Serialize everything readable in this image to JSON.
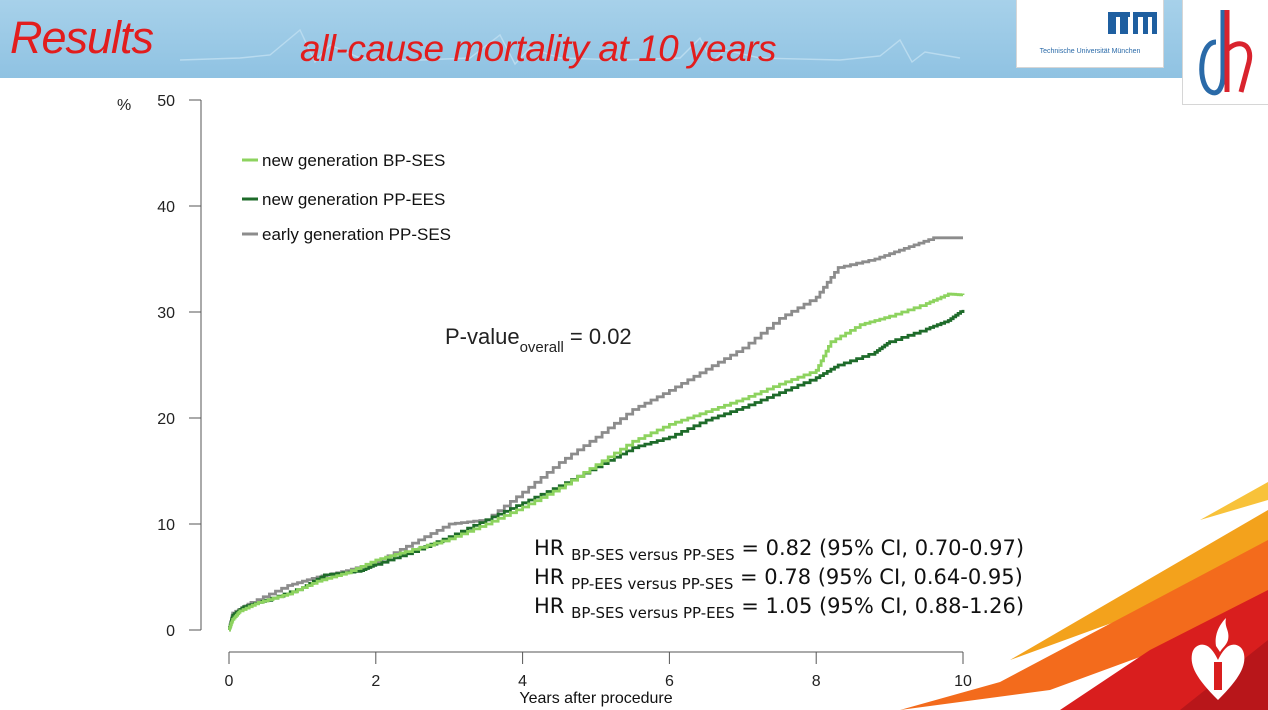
{
  "header": {
    "title": "Results",
    "subtitle": "all-cause mortality at 10 years",
    "tum_name": "Technische Universität München"
  },
  "colors": {
    "title_red": "#e21d1d",
    "header_blue": "#9ac9e6",
    "bp_ses": "#8dd35f",
    "pp_ees": "#1e6b2a",
    "early_pp_ses": "#8c8c8c",
    "stripe_orange": "#f36b1c",
    "stripe_red": "#d91e1e",
    "stripe_yellow": "#f8c23a"
  },
  "chart_data": {
    "type": "line",
    "title": "all-cause mortality at 10 years",
    "xlabel": "Years after procedure",
    "ylabel": "%",
    "xlim": [
      0,
      10
    ],
    "ylim": [
      0,
      50
    ],
    "x_ticks": [
      "0",
      "2",
      "4",
      "6",
      "8",
      "10"
    ],
    "y_ticks": [
      "0",
      "10",
      "20",
      "30",
      "40",
      "50"
    ],
    "legend_position": "top-left",
    "series": [
      {
        "name": "new generation BP-SES",
        "color": "#8dd35f",
        "points": [
          [
            0,
            0
          ],
          [
            0.05,
            1.0
          ],
          [
            0.15,
            1.8
          ],
          [
            0.4,
            2.6
          ],
          [
            0.8,
            3.4
          ],
          [
            1.2,
            4.6
          ],
          [
            1.6,
            5.4
          ],
          [
            2.0,
            6.6
          ],
          [
            2.4,
            7.4
          ],
          [
            3.0,
            8.6
          ],
          [
            3.5,
            10.0
          ],
          [
            4.0,
            11.6
          ],
          [
            4.5,
            13.4
          ],
          [
            5.0,
            15.6
          ],
          [
            5.5,
            17.8
          ],
          [
            6.0,
            19.4
          ],
          [
            6.5,
            20.6
          ],
          [
            7.0,
            21.8
          ],
          [
            7.5,
            23.2
          ],
          [
            8.0,
            24.5
          ],
          [
            8.2,
            27.2
          ],
          [
            8.6,
            28.8
          ],
          [
            9.0,
            29.6
          ],
          [
            9.5,
            30.8
          ],
          [
            9.8,
            31.7
          ],
          [
            10.0,
            31.6
          ]
        ]
      },
      {
        "name": "new generation PP-EES",
        "color": "#1e6b2a",
        "points": [
          [
            0,
            0
          ],
          [
            0.05,
            1.4
          ],
          [
            0.2,
            2.2
          ],
          [
            0.5,
            2.8
          ],
          [
            1.0,
            4.0
          ],
          [
            1.3,
            5.2
          ],
          [
            1.8,
            5.6
          ],
          [
            2.0,
            6.2
          ],
          [
            2.5,
            7.4
          ],
          [
            3.0,
            8.8
          ],
          [
            3.5,
            10.4
          ],
          [
            4.0,
            12.0
          ],
          [
            4.5,
            13.6
          ],
          [
            5.0,
            15.4
          ],
          [
            5.5,
            17.2
          ],
          [
            6.0,
            18.2
          ],
          [
            6.5,
            19.8
          ],
          [
            7.0,
            21.0
          ],
          [
            7.5,
            22.4
          ],
          [
            8.0,
            23.8
          ],
          [
            8.3,
            25.0
          ],
          [
            8.8,
            26.2
          ],
          [
            9.0,
            27.2
          ],
          [
            9.5,
            28.4
          ],
          [
            9.8,
            29.2
          ],
          [
            10.0,
            30.2
          ]
        ]
      },
      {
        "name": "early generation PP-SES",
        "color": "#8c8c8c",
        "points": [
          [
            0,
            0
          ],
          [
            0.05,
            1.6
          ],
          [
            0.3,
            2.6
          ],
          [
            0.8,
            4.2
          ],
          [
            1.2,
            5.0
          ],
          [
            1.6,
            5.6
          ],
          [
            2.0,
            6.4
          ],
          [
            2.5,
            8.2
          ],
          [
            3.0,
            10.0
          ],
          [
            3.5,
            10.4
          ],
          [
            4.0,
            13.0
          ],
          [
            4.5,
            15.8
          ],
          [
            5.0,
            18.2
          ],
          [
            5.5,
            20.8
          ],
          [
            6.0,
            22.6
          ],
          [
            6.5,
            24.6
          ],
          [
            7.0,
            26.6
          ],
          [
            7.5,
            29.4
          ],
          [
            8.0,
            31.4
          ],
          [
            8.3,
            34.2
          ],
          [
            8.8,
            35.0
          ],
          [
            9.2,
            36.0
          ],
          [
            9.6,
            37.0
          ],
          [
            10.0,
            37.0
          ]
        ]
      }
    ],
    "annotations": {
      "pvalue": {
        "main": "P-value",
        "sub": "overall",
        "rest": " = 0.02"
      },
      "hr": [
        {
          "main": "HR ",
          "sub": "BP-SES versus PP-SES",
          "rest": " = 0.82 (95% CI, 0.70-0.97)"
        },
        {
          "main": "HR ",
          "sub": "PP-EES versus PP-SES",
          "rest": " = 0.78 (95% CI, 0.64-0.95)"
        },
        {
          "main": "HR ",
          "sub": "BP-SES versus PP-EES",
          "rest": " = 1.05 (95% CI, 0.88-1.26)"
        }
      ]
    }
  }
}
